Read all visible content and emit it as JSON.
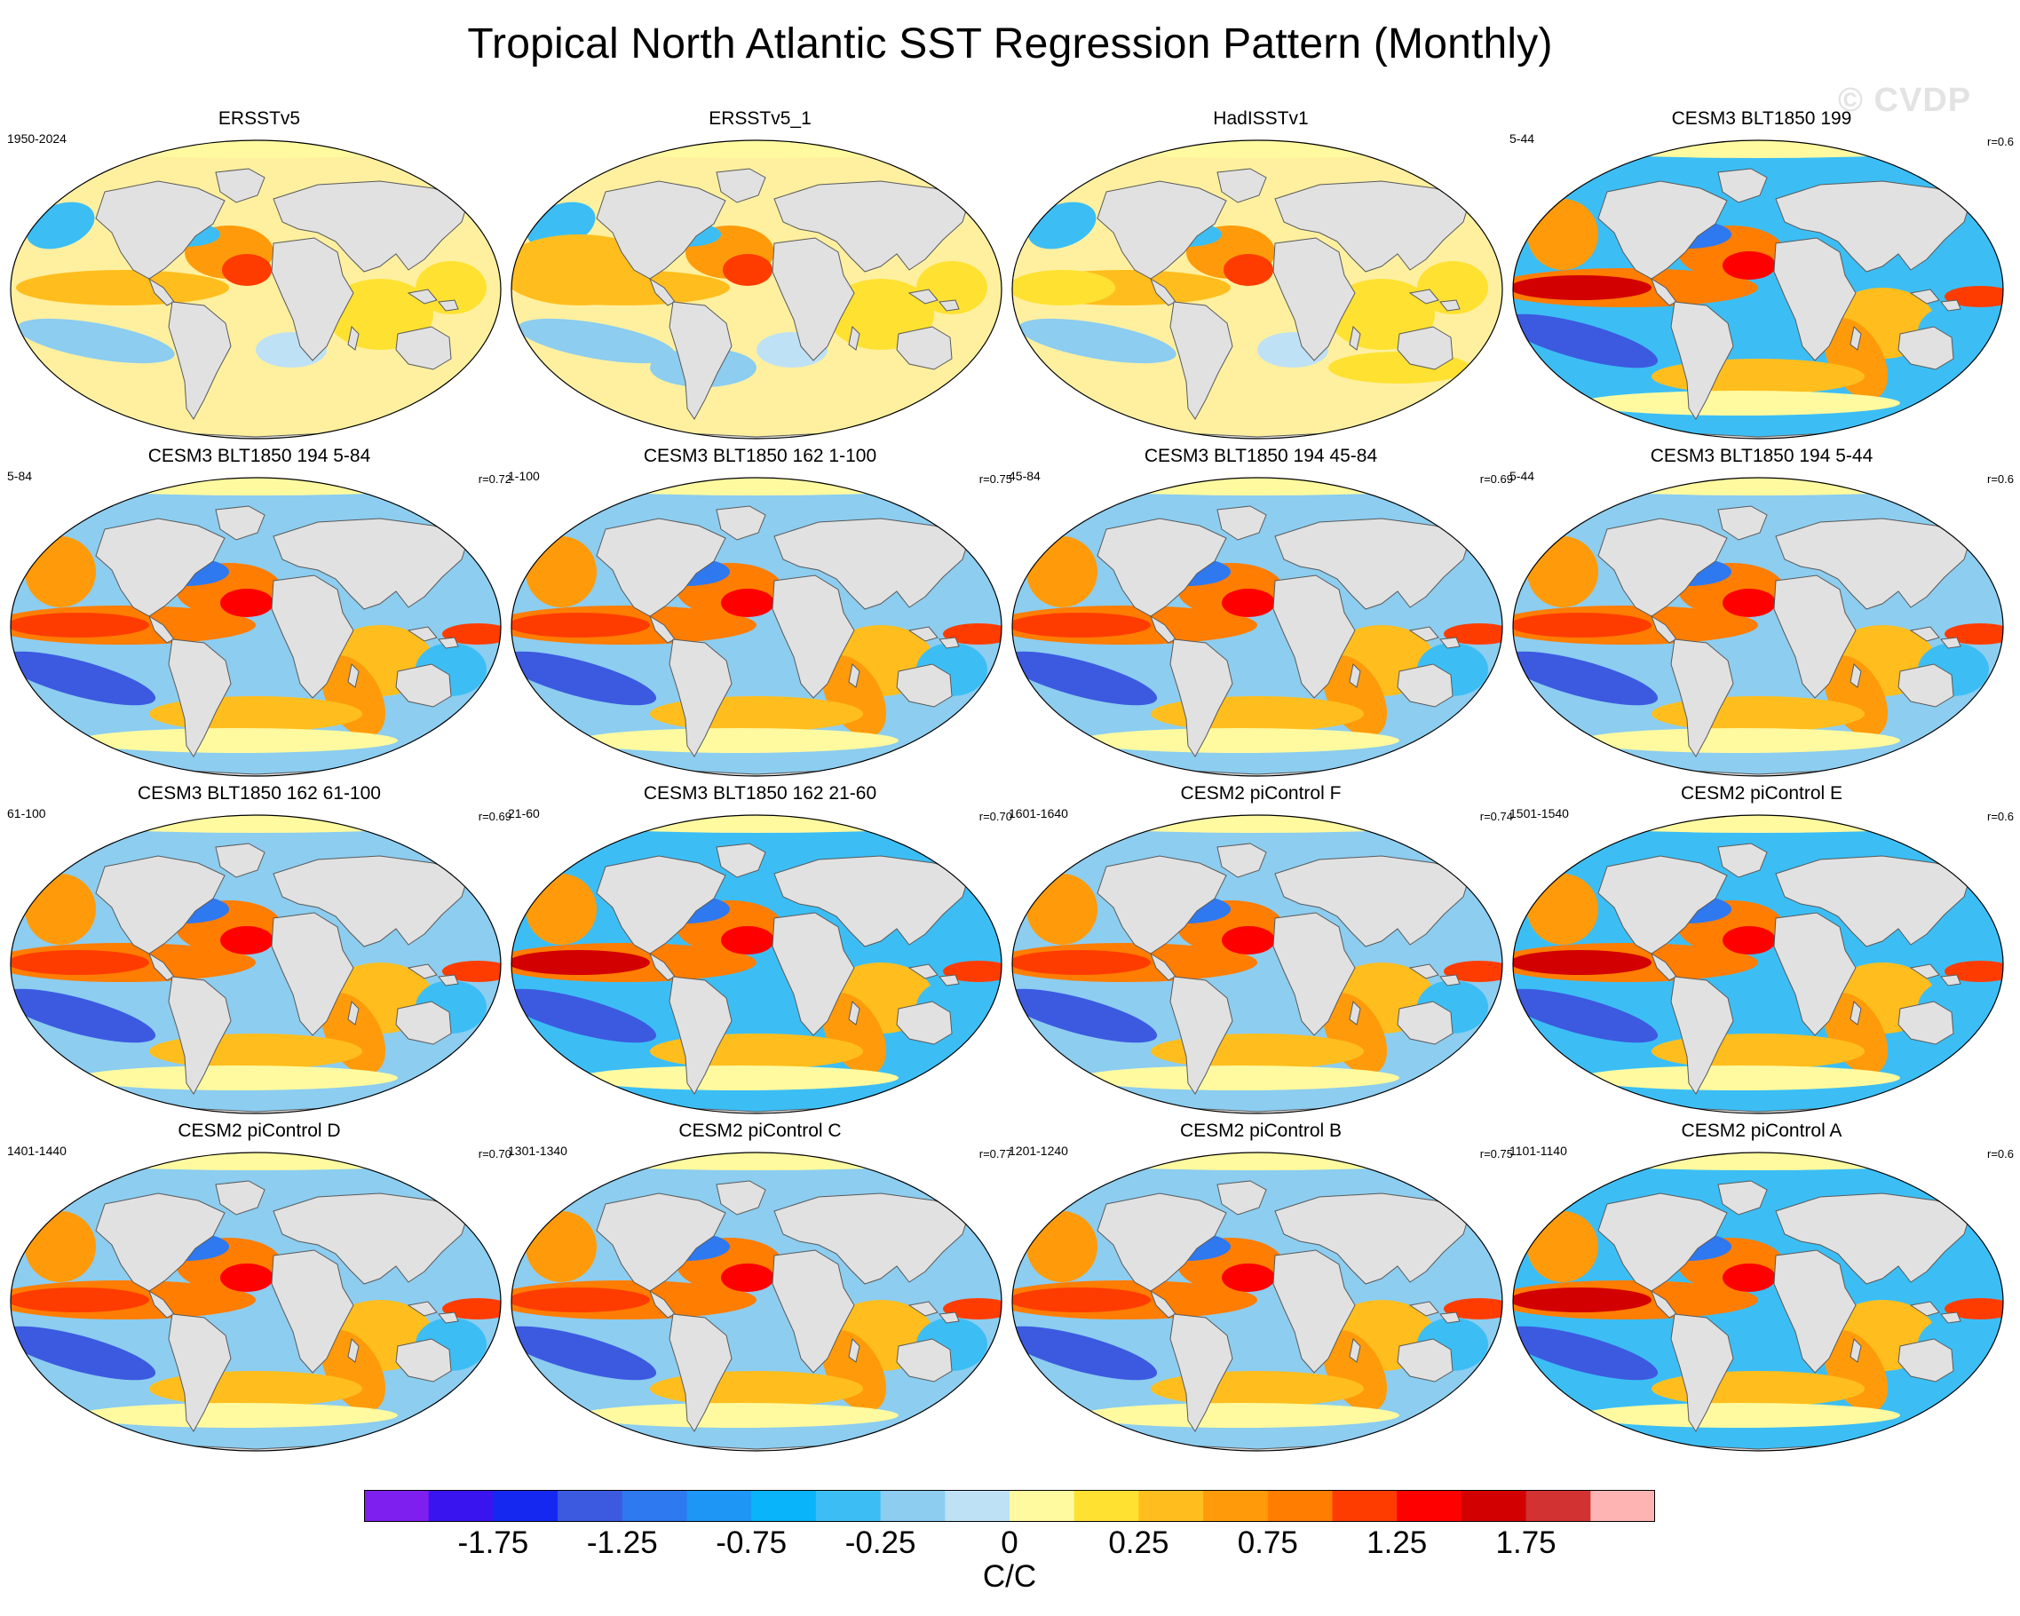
{
  "title": "Tropical North Atlantic SST Regression Pattern (Monthly)",
  "watermark": "© CVDP",
  "panels": [
    {
      "title": "ERSSTv5",
      "period": "1950-2024",
      "r": "",
      "pattern": "obs"
    },
    {
      "title": "ERSSTv5_1",
      "period": "",
      "r": "",
      "pattern": "obs2"
    },
    {
      "title": "HadISSTv1",
      "period": "",
      "r": "",
      "pattern": "obs3"
    },
    {
      "title": "CESM3 BLT1850 199",
      "period": "5-44",
      "r": "r=0.6",
      "pattern": "strong"
    },
    {
      "title": "CESM3 BLT1850 194 5-84",
      "period": "5-84",
      "r": "r=0.72",
      "pattern": "model"
    },
    {
      "title": "CESM3 BLT1850 162 1-100",
      "period": "1-100",
      "r": "r=0.75",
      "pattern": "model"
    },
    {
      "title": "CESM3 BLT1850 194 45-84",
      "period": "45-84",
      "r": "r=0.69",
      "pattern": "model"
    },
    {
      "title": "CESM3 BLT1850 194 5-44",
      "period": "5-44",
      "r": "r=0.6",
      "pattern": "model"
    },
    {
      "title": "CESM3 BLT1850 162 61-100",
      "period": "61-100",
      "r": "r=0.69",
      "pattern": "model"
    },
    {
      "title": "CESM3 BLT1850 162 21-60",
      "period": "21-60",
      "r": "r=0.70",
      "pattern": "strong"
    },
    {
      "title": "CESM2 piControl F",
      "period": "1601-1640",
      "r": "r=0.74",
      "pattern": "model"
    },
    {
      "title": "CESM2 piControl E",
      "period": "1501-1540",
      "r": "r=0.6",
      "pattern": "strong"
    },
    {
      "title": "CESM2 piControl D",
      "period": "1401-1440",
      "r": "r=0.70",
      "pattern": "model"
    },
    {
      "title": "CESM2 piControl C",
      "period": "1301-1340",
      "r": "r=0.77",
      "pattern": "model"
    },
    {
      "title": "CESM2 piControl B",
      "period": "1201-1240",
      "r": "r=0.75",
      "pattern": "model"
    },
    {
      "title": "CESM2 piControl A",
      "period": "1101-1140",
      "r": "r=0.6",
      "pattern": "strong"
    }
  ],
  "colorbar": {
    "colors": [
      "#7f1fef",
      "#3a14ef",
      "#1428f0",
      "#3c5ae0",
      "#2e78f0",
      "#1e96f5",
      "#0ab4fa",
      "#3cbef5",
      "#8ccdf0",
      "#bee1f5",
      "#fffaa0",
      "#ffe132",
      "#ffbe1e",
      "#ff9b0a",
      "#ff7d00",
      "#ff3c00",
      "#ff0000",
      "#d20000",
      "#d23232",
      "#ffb4b4"
    ],
    "labels": [
      "-1.75",
      "-1.25",
      "-0.75",
      "-0.25",
      "0",
      "0.25",
      "0.75",
      "1.25",
      "1.75"
    ],
    "units": "C/C"
  }
}
